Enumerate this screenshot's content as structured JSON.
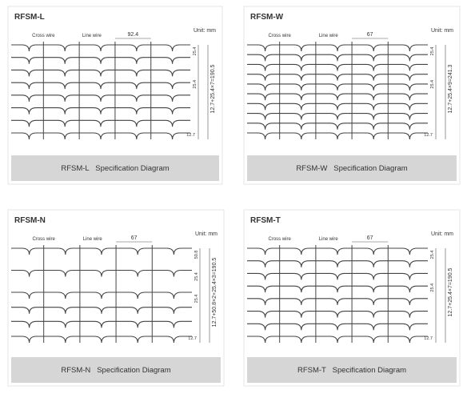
{
  "panels": [
    {
      "title": "RFSM-L",
      "unit": "Unit: mm",
      "cross_wire": "Cross wire",
      "line_wire": "Line wire",
      "pitch": "92.4",
      "dims": [
        "25.4",
        "25.4",
        "12.7"
      ],
      "total": "12.7+25.4×7=190.5",
      "caption": "RFSM-L   Specification Diagram"
    },
    {
      "title": "RFSM-W",
      "unit": "Unit: mm",
      "cross_wire": "Cross wire",
      "line_wire": "Line wire",
      "pitch": "67",
      "dims": [
        "25.4",
        "25.4",
        "12.7"
      ],
      "total": "12.7+25.4×9=241.3",
      "caption": "RFSM-W   Specification Diagram"
    },
    {
      "title": "RFSM-N",
      "unit": "Unit: mm",
      "cross_wire": "Cross wire",
      "line_wire": "Line wire",
      "pitch": "67",
      "dims": [
        "50.8",
        "25.4",
        "25.4",
        "12.7"
      ],
      "total": "12.7+50.8×2+25.4×3=190.5",
      "caption": "RFSM-N   Specification Diagram"
    },
    {
      "title": "RFSM-T",
      "unit": "Unit: mm",
      "cross_wire": "Cross wire",
      "line_wire": "Line wire",
      "pitch": "67",
      "dims": [
        "25.4",
        "25.4",
        "12.7"
      ],
      "total": "12.7+25.4×7=190.5",
      "caption": "RFSM-T   Specification Diagram"
    }
  ]
}
